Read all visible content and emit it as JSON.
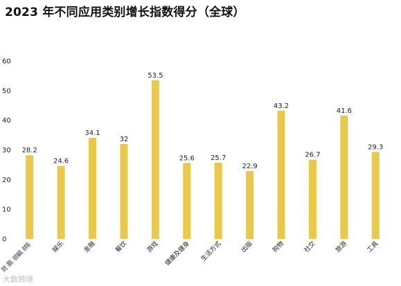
{
  "chart_data": {
    "type": "bar",
    "title": "2023 年不同应用类别增长指数得分（全球）",
    "categories": [
      "其他（摄影、视频编辑、效率等）",
      "娱乐",
      "金融",
      "餐饮",
      "游戏",
      "健康及健身",
      "生活方式",
      "出版",
      "购物",
      "社交",
      "旅游",
      "工具"
    ],
    "values": [
      28.2,
      24.6,
      34.1,
      32,
      53.5,
      25.6,
      25.7,
      22.9,
      43.2,
      26.7,
      41.6,
      29.3
    ],
    "value_labels": [
      "28.2",
      "24.6",
      "34.1",
      "32",
      "53.5",
      "25.6",
      "25.7",
      "22.9",
      "43.2",
      "26.7",
      "41.6",
      "29.3"
    ],
    "ylim": [
      0,
      60
    ],
    "yticks": [
      "0",
      "10",
      "20",
      "30",
      "40",
      "50",
      "60"
    ],
    "grid": false,
    "bar_color": "#e8c94a"
  },
  "watermark": "大数跨境"
}
